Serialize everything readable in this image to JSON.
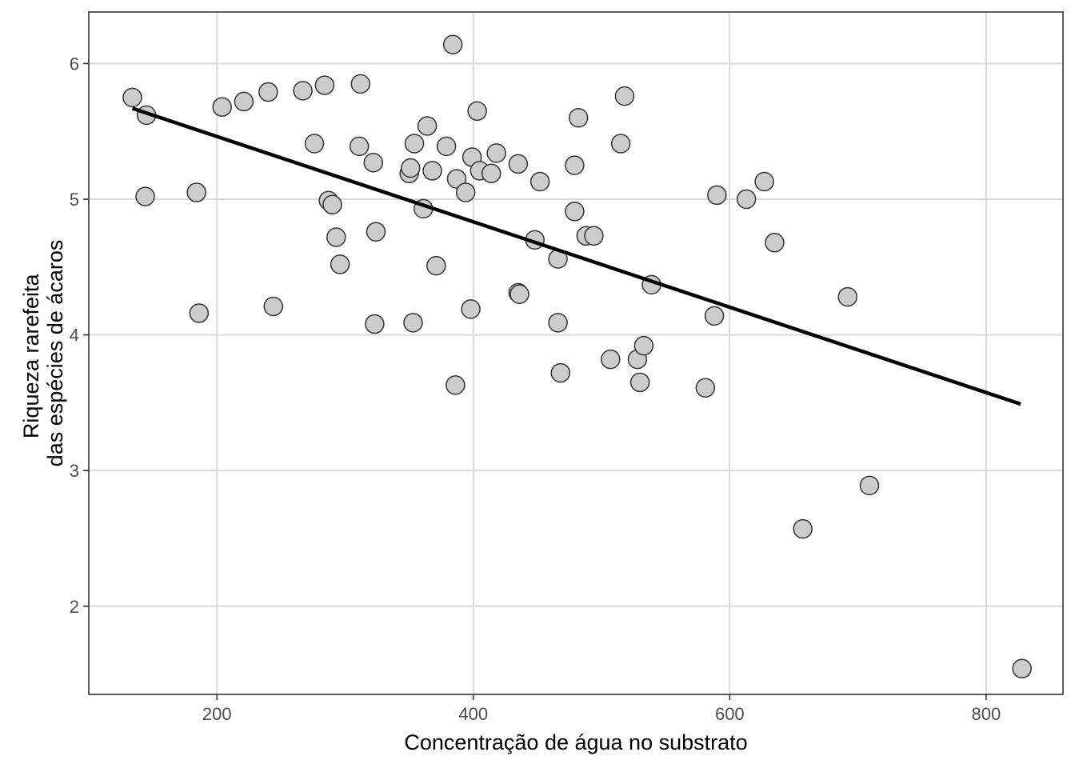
{
  "chart_data": {
    "type": "scatter",
    "xlabel": "Concentração de água no substrato",
    "ylabel_lines": [
      "Riqueza rarefeita",
      "das espécies de ácaros"
    ],
    "xlim": [
      100,
      860
    ],
    "ylim": [
      1.35,
      6.38
    ],
    "x_ticks": [
      200,
      400,
      600,
      800
    ],
    "y_ticks": [
      2,
      3,
      4,
      5,
      6
    ],
    "x_tick_labels": [
      "200",
      "400",
      "600",
      "800"
    ],
    "y_tick_labels": [
      "2",
      "3",
      "4",
      "5",
      "6"
    ],
    "grid": true,
    "legend": "none",
    "colors": {
      "point_fill": "#cccccc",
      "point_stroke": "#333333",
      "line": "#000000",
      "grid": "#d9d9d9",
      "panel_border": "#333333"
    },
    "points": [
      {
        "x": 134,
        "y": 5.75
      },
      {
        "x": 145,
        "y": 5.62
      },
      {
        "x": 144,
        "y": 5.02
      },
      {
        "x": 184,
        "y": 5.05
      },
      {
        "x": 186,
        "y": 4.16
      },
      {
        "x": 204,
        "y": 5.68
      },
      {
        "x": 221,
        "y": 5.72
      },
      {
        "x": 240,
        "y": 5.79
      },
      {
        "x": 244,
        "y": 4.21
      },
      {
        "x": 267,
        "y": 5.8
      },
      {
        "x": 276,
        "y": 5.41
      },
      {
        "x": 284,
        "y": 5.84
      },
      {
        "x": 287,
        "y": 4.99
      },
      {
        "x": 290,
        "y": 4.96
      },
      {
        "x": 293,
        "y": 4.72
      },
      {
        "x": 296,
        "y": 4.52
      },
      {
        "x": 311,
        "y": 5.39
      },
      {
        "x": 312,
        "y": 5.85
      },
      {
        "x": 322,
        "y": 5.27
      },
      {
        "x": 324,
        "y": 4.76
      },
      {
        "x": 323,
        "y": 4.08
      },
      {
        "x": 350,
        "y": 5.19
      },
      {
        "x": 351,
        "y": 5.23
      },
      {
        "x": 354,
        "y": 5.41
      },
      {
        "x": 353,
        "y": 4.09
      },
      {
        "x": 361,
        "y": 4.93
      },
      {
        "x": 364,
        "y": 5.54
      },
      {
        "x": 368,
        "y": 5.21
      },
      {
        "x": 371,
        "y": 4.51
      },
      {
        "x": 379,
        "y": 5.39
      },
      {
        "x": 384,
        "y": 6.14
      },
      {
        "x": 387,
        "y": 5.15
      },
      {
        "x": 386,
        "y": 3.63
      },
      {
        "x": 394,
        "y": 5.05
      },
      {
        "x": 399,
        "y": 5.31
      },
      {
        "x": 398,
        "y": 4.19
      },
      {
        "x": 403,
        "y": 5.65
      },
      {
        "x": 405,
        "y": 5.21
      },
      {
        "x": 414,
        "y": 5.19
      },
      {
        "x": 418,
        "y": 5.34
      },
      {
        "x": 435,
        "y": 5.26
      },
      {
        "x": 435,
        "y": 4.31
      },
      {
        "x": 436,
        "y": 4.3
      },
      {
        "x": 448,
        "y": 4.7
      },
      {
        "x": 452,
        "y": 5.13
      },
      {
        "x": 466,
        "y": 4.56
      },
      {
        "x": 466,
        "y": 4.09
      },
      {
        "x": 468,
        "y": 3.72
      },
      {
        "x": 479,
        "y": 5.25
      },
      {
        "x": 479,
        "y": 4.91
      },
      {
        "x": 482,
        "y": 5.6
      },
      {
        "x": 488,
        "y": 4.73
      },
      {
        "x": 494,
        "y": 4.73
      },
      {
        "x": 507,
        "y": 3.82
      },
      {
        "x": 515,
        "y": 5.41
      },
      {
        "x": 518,
        "y": 5.76
      },
      {
        "x": 528,
        "y": 3.82
      },
      {
        "x": 530,
        "y": 3.65
      },
      {
        "x": 533,
        "y": 3.92
      },
      {
        "x": 539,
        "y": 4.37
      },
      {
        "x": 581,
        "y": 3.61
      },
      {
        "x": 588,
        "y": 4.14
      },
      {
        "x": 590,
        "y": 5.03
      },
      {
        "x": 613,
        "y": 5.0
      },
      {
        "x": 627,
        "y": 5.13
      },
      {
        "x": 635,
        "y": 4.68
      },
      {
        "x": 657,
        "y": 2.57
      },
      {
        "x": 692,
        "y": 4.28
      },
      {
        "x": 709,
        "y": 2.89
      },
      {
        "x": 828,
        "y": 1.54
      }
    ],
    "trend_line": {
      "x1": 134,
      "y1": 5.67,
      "x2": 827,
      "y2": 3.49
    }
  }
}
